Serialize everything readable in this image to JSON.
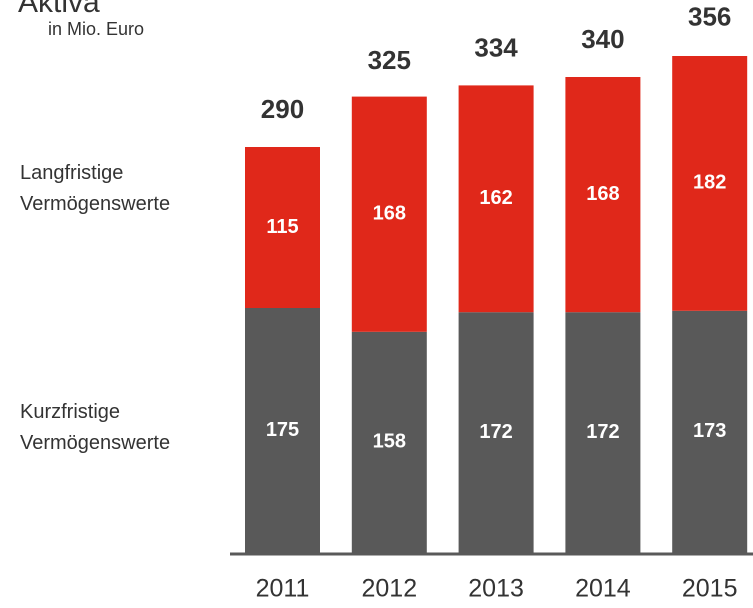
{
  "chart_data": {
    "type": "stacked_bar",
    "title": "Aktiva",
    "subtitle": "in Mio. Euro",
    "categories": [
      "2011",
      "2012",
      "2013",
      "2014",
      "2015"
    ],
    "series": [
      {
        "name": "Kurzfristige Vermögenswerte",
        "color": "#595959",
        "values": [
          175,
          158,
          172,
          172,
          173
        ]
      },
      {
        "name": "Langfristige Vermögenswerte",
        "color": "#e0281a",
        "values": [
          115,
          168,
          162,
          168,
          182
        ]
      }
    ],
    "totals": [
      290,
      325,
      334,
      340,
      356
    ]
  }
}
